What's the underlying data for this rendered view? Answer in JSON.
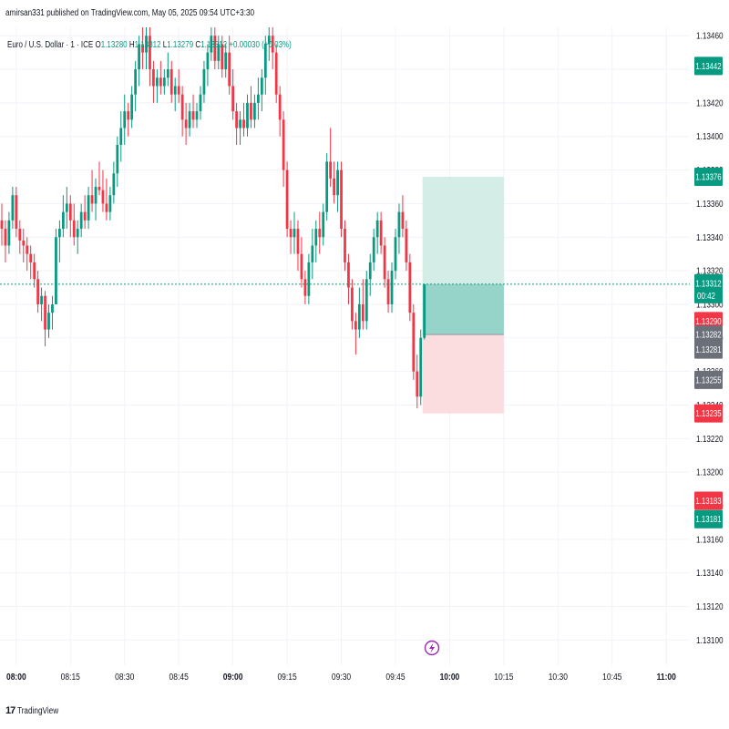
{
  "header": {
    "published_line": "amirsan331 published on TradingView.com, May 05, 2025 09:54 UTC+3:30"
  },
  "legend": {
    "symbol": "Euro / U.S. Dollar · 1 · ICE",
    "o_label": "O",
    "o_value": "1.13280",
    "h_label": "H",
    "h_value": "1.13312",
    "l_label": "L",
    "l_value": "1.13279",
    "c_label": "C",
    "c_value": "1.13312",
    "change": "+0.00030 (+0.03%)"
  },
  "footer": {
    "brand": "TradingView"
  },
  "colors": {
    "up": "#089981",
    "down": "#f23645",
    "grid": "#f0f3fa",
    "tp_zone": "#cdeae3",
    "sl_zone": "#fbd9dc",
    "badge_gray": "#6b6f78",
    "axis_text": "#131722",
    "lightning": "#9c27b0"
  },
  "chart_data": {
    "type": "candlestick",
    "title": "Euro / U.S. Dollar · 1 · ICE",
    "ylim": [
      1.13085,
      1.13465
    ],
    "y_ticks": [
      "1.13460",
      "1.13440",
      "1.13420",
      "1.13400",
      "1.13380",
      "1.13360",
      "1.13340",
      "1.13320",
      "1.13300",
      "1.13280",
      "1.13260",
      "1.13240",
      "1.13220",
      "1.13200",
      "1.13180",
      "1.13160",
      "1.13140",
      "1.13120",
      "1.13100"
    ],
    "x_ticks": [
      "08:00",
      "08:15",
      "08:30",
      "08:45",
      "09:00",
      "09:15",
      "09:30",
      "09:45",
      "10:00",
      "10:15",
      "10:30",
      "10:45",
      "11:00"
    ],
    "x_tick_minutes": [
      0,
      15,
      30,
      45,
      60,
      75,
      90,
      105,
      120,
      135,
      150,
      165,
      180
    ],
    "x_range_minutes": [
      -4.5,
      186.5
    ],
    "bold_x_ticks": [
      "08:00",
      "09:00",
      "10:00",
      "11:00"
    ],
    "candles": [
      {
        "t": -4,
        "o": 1.1335,
        "h": 1.1336,
        "l": 1.13335,
        "c": 1.13345
      },
      {
        "t": -3,
        "o": 1.13345,
        "h": 1.1335,
        "l": 1.13325,
        "c": 1.13335
      },
      {
        "t": -2,
        "o": 1.13335,
        "h": 1.13355,
        "l": 1.1333,
        "c": 1.1335
      },
      {
        "t": -1,
        "o": 1.1335,
        "h": 1.1337,
        "l": 1.13345,
        "c": 1.13365
      },
      {
        "t": 0,
        "o": 1.13365,
        "h": 1.1337,
        "l": 1.1334,
        "c": 1.13345
      },
      {
        "t": 1,
        "o": 1.13345,
        "h": 1.1335,
        "l": 1.1333,
        "c": 1.13338
      },
      {
        "t": 2,
        "o": 1.13338,
        "h": 1.13345,
        "l": 1.13325,
        "c": 1.13335
      },
      {
        "t": 3,
        "o": 1.13335,
        "h": 1.1334,
        "l": 1.1332,
        "c": 1.1333
      },
      {
        "t": 4,
        "o": 1.1333,
        "h": 1.13335,
        "l": 1.13315,
        "c": 1.13325
      },
      {
        "t": 5,
        "o": 1.13325,
        "h": 1.1333,
        "l": 1.1331,
        "c": 1.13315
      },
      {
        "t": 6,
        "o": 1.13315,
        "h": 1.1332,
        "l": 1.13295,
        "c": 1.133
      },
      {
        "t": 7,
        "o": 1.133,
        "h": 1.1331,
        "l": 1.1329,
        "c": 1.13305
      },
      {
        "t": 8,
        "o": 1.13305,
        "h": 1.13308,
        "l": 1.13275,
        "c": 1.13285
      },
      {
        "t": 9,
        "o": 1.13285,
        "h": 1.133,
        "l": 1.1328,
        "c": 1.13295
      },
      {
        "t": 10,
        "o": 1.13295,
        "h": 1.13305,
        "l": 1.13285,
        "c": 1.133
      },
      {
        "t": 11,
        "o": 1.133,
        "h": 1.13345,
        "l": 1.133,
        "c": 1.1334
      },
      {
        "t": 12,
        "o": 1.1334,
        "h": 1.1335,
        "l": 1.13325,
        "c": 1.13345
      },
      {
        "t": 13,
        "o": 1.13345,
        "h": 1.13365,
        "l": 1.1334,
        "c": 1.13355
      },
      {
        "t": 14,
        "o": 1.13355,
        "h": 1.1337,
        "l": 1.13345,
        "c": 1.1336
      },
      {
        "t": 15,
        "o": 1.1336,
        "h": 1.13365,
        "l": 1.1334,
        "c": 1.1335
      },
      {
        "t": 16,
        "o": 1.1335,
        "h": 1.1336,
        "l": 1.13335,
        "c": 1.1334
      },
      {
        "t": 17,
        "o": 1.1334,
        "h": 1.1335,
        "l": 1.1333,
        "c": 1.13345
      },
      {
        "t": 18,
        "o": 1.13345,
        "h": 1.1336,
        "l": 1.1334,
        "c": 1.13355
      },
      {
        "t": 19,
        "o": 1.13355,
        "h": 1.13365,
        "l": 1.13345,
        "c": 1.1335
      },
      {
        "t": 20,
        "o": 1.1335,
        "h": 1.1337,
        "l": 1.13345,
        "c": 1.13365
      },
      {
        "t": 21,
        "o": 1.13365,
        "h": 1.1338,
        "l": 1.13355,
        "c": 1.1336
      },
      {
        "t": 22,
        "o": 1.1336,
        "h": 1.13375,
        "l": 1.1335,
        "c": 1.1337
      },
      {
        "t": 23,
        "o": 1.1337,
        "h": 1.13385,
        "l": 1.13365,
        "c": 1.13368
      },
      {
        "t": 24,
        "o": 1.13368,
        "h": 1.1338,
        "l": 1.13355,
        "c": 1.1336
      },
      {
        "t": 25,
        "o": 1.1336,
        "h": 1.13375,
        "l": 1.1335,
        "c": 1.13355
      },
      {
        "t": 26,
        "o": 1.13355,
        "h": 1.1337,
        "l": 1.1335,
        "c": 1.13365
      },
      {
        "t": 27,
        "o": 1.13365,
        "h": 1.13385,
        "l": 1.1336,
        "c": 1.13378
      },
      {
        "t": 28,
        "o": 1.13378,
        "h": 1.134,
        "l": 1.1337,
        "c": 1.13395
      },
      {
        "t": 29,
        "o": 1.13395,
        "h": 1.13415,
        "l": 1.13385,
        "c": 1.13405
      },
      {
        "t": 30,
        "o": 1.13405,
        "h": 1.13425,
        "l": 1.13395,
        "c": 1.13415
      },
      {
        "t": 31,
        "o": 1.13415,
        "h": 1.1342,
        "l": 1.134,
        "c": 1.1341
      },
      {
        "t": 32,
        "o": 1.1341,
        "h": 1.1343,
        "l": 1.13405,
        "c": 1.13425
      },
      {
        "t": 33,
        "o": 1.13425,
        "h": 1.13445,
        "l": 1.13415,
        "c": 1.1344
      },
      {
        "t": 34,
        "o": 1.1344,
        "h": 1.1346,
        "l": 1.1343,
        "c": 1.13455
      },
      {
        "t": 35,
        "o": 1.13455,
        "h": 1.13465,
        "l": 1.1344,
        "c": 1.1345
      },
      {
        "t": 36,
        "o": 1.1345,
        "h": 1.13465,
        "l": 1.1344,
        "c": 1.1346
      },
      {
        "t": 37,
        "o": 1.1346,
        "h": 1.13465,
        "l": 1.1343,
        "c": 1.1344
      },
      {
        "t": 38,
        "o": 1.1344,
        "h": 1.13445,
        "l": 1.1342,
        "c": 1.1343
      },
      {
        "t": 39,
        "o": 1.1343,
        "h": 1.1344,
        "l": 1.1342,
        "c": 1.13435
      },
      {
        "t": 40,
        "o": 1.13435,
        "h": 1.13445,
        "l": 1.13425,
        "c": 1.1343
      },
      {
        "t": 41,
        "o": 1.1343,
        "h": 1.1344,
        "l": 1.13425,
        "c": 1.13435
      },
      {
        "t": 42,
        "o": 1.13435,
        "h": 1.1345,
        "l": 1.1343,
        "c": 1.1344
      },
      {
        "t": 43,
        "o": 1.1344,
        "h": 1.13445,
        "l": 1.1342,
        "c": 1.13425
      },
      {
        "t": 44,
        "o": 1.13425,
        "h": 1.13435,
        "l": 1.13415,
        "c": 1.1343
      },
      {
        "t": 45,
        "o": 1.1343,
        "h": 1.1344,
        "l": 1.1342,
        "c": 1.13425
      },
      {
        "t": 46,
        "o": 1.13425,
        "h": 1.1343,
        "l": 1.134,
        "c": 1.1341
      },
      {
        "t": 47,
        "o": 1.1341,
        "h": 1.1342,
        "l": 1.13395,
        "c": 1.13405
      },
      {
        "t": 48,
        "o": 1.13405,
        "h": 1.1342,
        "l": 1.134,
        "c": 1.13415
      },
      {
        "t": 49,
        "o": 1.13415,
        "h": 1.13425,
        "l": 1.13405,
        "c": 1.1341
      },
      {
        "t": 50,
        "o": 1.1341,
        "h": 1.1342,
        "l": 1.13405,
        "c": 1.13415
      },
      {
        "t": 51,
        "o": 1.13415,
        "h": 1.1343,
        "l": 1.1341,
        "c": 1.13425
      },
      {
        "t": 52,
        "o": 1.13425,
        "h": 1.13445,
        "l": 1.1342,
        "c": 1.1344
      },
      {
        "t": 53,
        "o": 1.1344,
        "h": 1.13455,
        "l": 1.1343,
        "c": 1.1345
      },
      {
        "t": 54,
        "o": 1.1345,
        "h": 1.13465,
        "l": 1.13445,
        "c": 1.1346
      },
      {
        "t": 55,
        "o": 1.1346,
        "h": 1.13465,
        "l": 1.1344,
        "c": 1.13445
      },
      {
        "t": 56,
        "o": 1.13445,
        "h": 1.1346,
        "l": 1.1344,
        "c": 1.13455
      },
      {
        "t": 57,
        "o": 1.13455,
        "h": 1.1346,
        "l": 1.13435,
        "c": 1.1344
      },
      {
        "t": 58,
        "o": 1.1344,
        "h": 1.13455,
        "l": 1.13435,
        "c": 1.1345
      },
      {
        "t": 59,
        "o": 1.1345,
        "h": 1.1346,
        "l": 1.13425,
        "c": 1.1343
      },
      {
        "t": 60,
        "o": 1.1343,
        "h": 1.1344,
        "l": 1.1341,
        "c": 1.13415
      },
      {
        "t": 61,
        "o": 1.13415,
        "h": 1.1342,
        "l": 1.13395,
        "c": 1.13405
      },
      {
        "t": 62,
        "o": 1.13405,
        "h": 1.13415,
        "l": 1.13395,
        "c": 1.1341
      },
      {
        "t": 63,
        "o": 1.1341,
        "h": 1.1342,
        "l": 1.134,
        "c": 1.13405
      },
      {
        "t": 64,
        "o": 1.13405,
        "h": 1.13425,
        "l": 1.134,
        "c": 1.1342
      },
      {
        "t": 65,
        "o": 1.1342,
        "h": 1.1343,
        "l": 1.13405,
        "c": 1.1341
      },
      {
        "t": 66,
        "o": 1.1341,
        "h": 1.13425,
        "l": 1.13405,
        "c": 1.1342
      },
      {
        "t": 67,
        "o": 1.1342,
        "h": 1.13435,
        "l": 1.1341,
        "c": 1.13425
      },
      {
        "t": 68,
        "o": 1.13425,
        "h": 1.1344,
        "l": 1.13415,
        "c": 1.13435
      },
      {
        "t": 69,
        "o": 1.13435,
        "h": 1.1346,
        "l": 1.13425,
        "c": 1.13455
      },
      {
        "t": 70,
        "o": 1.13455,
        "h": 1.13465,
        "l": 1.13445,
        "c": 1.1346
      },
      {
        "t": 71,
        "o": 1.1346,
        "h": 1.13465,
        "l": 1.1344,
        "c": 1.1345
      },
      {
        "t": 72,
        "o": 1.1345,
        "h": 1.13455,
        "l": 1.1342,
        "c": 1.13425
      },
      {
        "t": 73,
        "o": 1.13425,
        "h": 1.1343,
        "l": 1.134,
        "c": 1.1341
      },
      {
        "t": 74,
        "o": 1.1341,
        "h": 1.13415,
        "l": 1.1337,
        "c": 1.1338
      },
      {
        "t": 75,
        "o": 1.1338,
        "h": 1.13385,
        "l": 1.1334,
        "c": 1.13345
      },
      {
        "t": 76,
        "o": 1.13345,
        "h": 1.1335,
        "l": 1.1333,
        "c": 1.1334
      },
      {
        "t": 77,
        "o": 1.1334,
        "h": 1.13355,
        "l": 1.1333,
        "c": 1.13345
      },
      {
        "t": 78,
        "o": 1.13345,
        "h": 1.1335,
        "l": 1.1332,
        "c": 1.1333
      },
      {
        "t": 79,
        "o": 1.1333,
        "h": 1.1334,
        "l": 1.1331,
        "c": 1.13315
      },
      {
        "t": 80,
        "o": 1.13315,
        "h": 1.1332,
        "l": 1.133,
        "c": 1.13305
      },
      {
        "t": 81,
        "o": 1.13305,
        "h": 1.1333,
        "l": 1.133,
        "c": 1.13325
      },
      {
        "t": 82,
        "o": 1.13325,
        "h": 1.13345,
        "l": 1.13315,
        "c": 1.13335
      },
      {
        "t": 83,
        "o": 1.13335,
        "h": 1.1335,
        "l": 1.13325,
        "c": 1.13345
      },
      {
        "t": 84,
        "o": 1.13345,
        "h": 1.13355,
        "l": 1.1333,
        "c": 1.1334
      },
      {
        "t": 85,
        "o": 1.1334,
        "h": 1.1336,
        "l": 1.13335,
        "c": 1.13355
      },
      {
        "t": 86,
        "o": 1.13355,
        "h": 1.1339,
        "l": 1.1335,
        "c": 1.13385
      },
      {
        "t": 87,
        "o": 1.13385,
        "h": 1.13405,
        "l": 1.1337,
        "c": 1.13375
      },
      {
        "t": 88,
        "o": 1.13375,
        "h": 1.13385,
        "l": 1.1336,
        "c": 1.13365
      },
      {
        "t": 89,
        "o": 1.13365,
        "h": 1.13385,
        "l": 1.13355,
        "c": 1.1338
      },
      {
        "t": 90,
        "o": 1.1338,
        "h": 1.13385,
        "l": 1.1334,
        "c": 1.13345
      },
      {
        "t": 91,
        "o": 1.13345,
        "h": 1.1335,
        "l": 1.1332,
        "c": 1.13325
      },
      {
        "t": 92,
        "o": 1.13325,
        "h": 1.1333,
        "l": 1.133,
        "c": 1.1331
      },
      {
        "t": 93,
        "o": 1.1331,
        "h": 1.13315,
        "l": 1.13285,
        "c": 1.1329
      },
      {
        "t": 94,
        "o": 1.1329,
        "h": 1.13295,
        "l": 1.1327,
        "c": 1.13285
      },
      {
        "t": 95,
        "o": 1.13285,
        "h": 1.1331,
        "l": 1.1328,
        "c": 1.133
      },
      {
        "t": 96,
        "o": 1.133,
        "h": 1.13315,
        "l": 1.13285,
        "c": 1.1329
      },
      {
        "t": 97,
        "o": 1.1329,
        "h": 1.1332,
        "l": 1.13285,
        "c": 1.13315
      },
      {
        "t": 98,
        "o": 1.13315,
        "h": 1.1333,
        "l": 1.13305,
        "c": 1.13325
      },
      {
        "t": 99,
        "o": 1.13325,
        "h": 1.13345,
        "l": 1.1332,
        "c": 1.1334
      },
      {
        "t": 100,
        "o": 1.1334,
        "h": 1.13355,
        "l": 1.1333,
        "c": 1.1335
      },
      {
        "t": 101,
        "o": 1.1335,
        "h": 1.13355,
        "l": 1.1333,
        "c": 1.13335
      },
      {
        "t": 102,
        "o": 1.13335,
        "h": 1.1334,
        "l": 1.1331,
        "c": 1.13315
      },
      {
        "t": 103,
        "o": 1.13315,
        "h": 1.1332,
        "l": 1.13295,
        "c": 1.133
      },
      {
        "t": 104,
        "o": 1.133,
        "h": 1.13325,
        "l": 1.13295,
        "c": 1.1332
      },
      {
        "t": 105,
        "o": 1.1332,
        "h": 1.13345,
        "l": 1.13315,
        "c": 1.1334
      },
      {
        "t": 106,
        "o": 1.1334,
        "h": 1.1336,
        "l": 1.1333,
        "c": 1.13355
      },
      {
        "t": 107,
        "o": 1.13355,
        "h": 1.13365,
        "l": 1.1334,
        "c": 1.13345
      },
      {
        "t": 108,
        "o": 1.13345,
        "h": 1.1335,
        "l": 1.1332,
        "c": 1.13325
      },
      {
        "t": 109,
        "o": 1.13325,
        "h": 1.1333,
        "l": 1.1329,
        "c": 1.13295
      },
      {
        "t": 110,
        "o": 1.13295,
        "h": 1.133,
        "l": 1.13255,
        "c": 1.1326
      },
      {
        "t": 111,
        "o": 1.1326,
        "h": 1.1327,
        "l": 1.13238,
        "c": 1.13245
      },
      {
        "t": 112,
        "o": 1.13245,
        "h": 1.13285,
        "l": 1.1324,
        "c": 1.1328
      },
      {
        "t": 113,
        "o": 1.1328,
        "h": 1.13312,
        "l": 1.13279,
        "c": 1.13312
      }
    ],
    "last_price": 1.13312,
    "position": {
      "type": "long",
      "start_minute": 112.5,
      "end_minute": 135,
      "entry": 1.13282,
      "take_profit": 1.13376,
      "stop_loss": 1.13235
    },
    "price_badges": [
      {
        "label": "1.13442",
        "price": 1.13442,
        "color": "up"
      },
      {
        "label": "1.13376",
        "price": 1.13376,
        "color": "up"
      },
      {
        "label": "1.13312",
        "sub": "00:42",
        "price": 1.13312,
        "color": "up"
      },
      {
        "label": "1.13290",
        "price": 1.1329,
        "color": "down"
      },
      {
        "label": "1.13282",
        "price": 1.13282,
        "color": "gray"
      },
      {
        "label": "1.13281",
        "price": 1.13273,
        "color": "gray"
      },
      {
        "label": "1.13255",
        "price": 1.13255,
        "color": "gray"
      },
      {
        "label": "1.13235",
        "price": 1.13235,
        "color": "down"
      },
      {
        "label": "1.13183",
        "price": 1.13183,
        "color": "down"
      },
      {
        "label": "1.13181",
        "price": 1.13172,
        "color": "up"
      }
    ]
  }
}
